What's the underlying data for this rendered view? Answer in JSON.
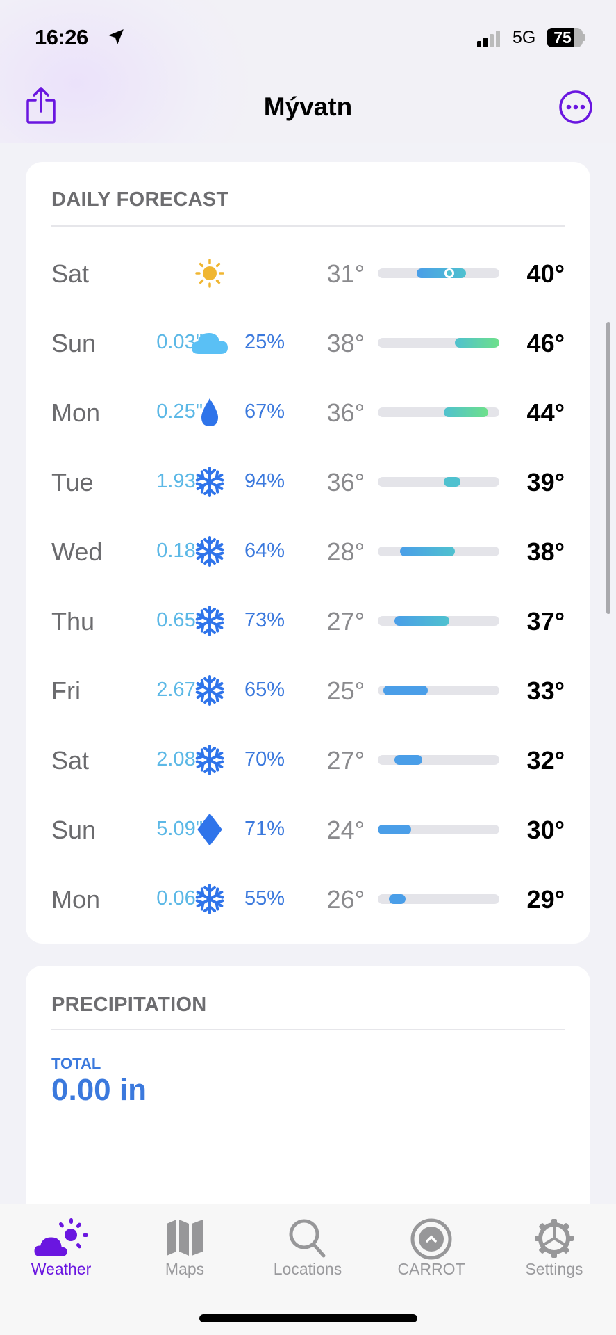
{
  "status_bar": {
    "time": "16:26",
    "network": "5G",
    "battery": "75",
    "battery_level_percent": 75,
    "signal_bars": 2
  },
  "nav": {
    "title": "Mývatn",
    "share_icon": "share-icon",
    "more_icon": "ellipsis-circle-icon",
    "accent": "#6a16e0"
  },
  "daily_forecast": {
    "header": "DAILY FORECAST",
    "temp_range": [
      24,
      46
    ],
    "days": [
      {
        "day": "Sat",
        "precip": "",
        "icon": "sun",
        "chance": "",
        "low": "31°",
        "high": "40°",
        "low_v": 31,
        "high_v": 40,
        "current_v": 37
      },
      {
        "day": "Sun",
        "precip": "0.03\"",
        "icon": "cloud",
        "chance": "25%",
        "low": "38°",
        "high": "46°",
        "low_v": 38,
        "high_v": 46
      },
      {
        "day": "Mon",
        "precip": "0.25\"",
        "icon": "raindrop",
        "chance": "67%",
        "low": "36°",
        "high": "44°",
        "low_v": 36,
        "high_v": 44
      },
      {
        "day": "Tue",
        "precip": "1.93\"",
        "icon": "snowflake",
        "chance": "94%",
        "low": "36°",
        "high": "39°",
        "low_v": 36,
        "high_v": 39
      },
      {
        "day": "Wed",
        "precip": "0.18\"",
        "icon": "snowflake",
        "chance": "64%",
        "low": "28°",
        "high": "38°",
        "low_v": 28,
        "high_v": 38
      },
      {
        "day": "Thu",
        "precip": "0.65\"",
        "icon": "snowflake",
        "chance": "73%",
        "low": "27°",
        "high": "37°",
        "low_v": 27,
        "high_v": 37
      },
      {
        "day": "Fri",
        "precip": "2.67\"",
        "icon": "snowflake",
        "chance": "65%",
        "low": "25°",
        "high": "33°",
        "low_v": 25,
        "high_v": 33
      },
      {
        "day": "Sat",
        "precip": "2.08\"",
        "icon": "snowflake",
        "chance": "70%",
        "low": "27°",
        "high": "32°",
        "low_v": 27,
        "high_v": 32
      },
      {
        "day": "Sun",
        "precip": "5.09\"",
        "icon": "sleet-diamond",
        "chance": "71%",
        "low": "24°",
        "high": "30°",
        "low_v": 24,
        "high_v": 30
      },
      {
        "day": "Mon",
        "precip": "0.06\"",
        "icon": "snowflake",
        "chance": "55%",
        "low": "26°",
        "high": "29°",
        "low_v": 26,
        "high_v": 29
      }
    ]
  },
  "precipitation": {
    "header": "PRECIPITATION",
    "total_label": "TOTAL",
    "total_value": "0.00 in"
  },
  "tabs": [
    {
      "label": "Weather",
      "icon": "cloud-sun-icon",
      "active": true
    },
    {
      "label": "Maps",
      "icon": "map-icon",
      "active": false
    },
    {
      "label": "Locations",
      "icon": "search-icon",
      "active": false
    },
    {
      "label": "CARROT",
      "icon": "carrot-logo-icon",
      "active": false
    },
    {
      "label": "Settings",
      "icon": "gear-icon",
      "active": false
    }
  ]
}
